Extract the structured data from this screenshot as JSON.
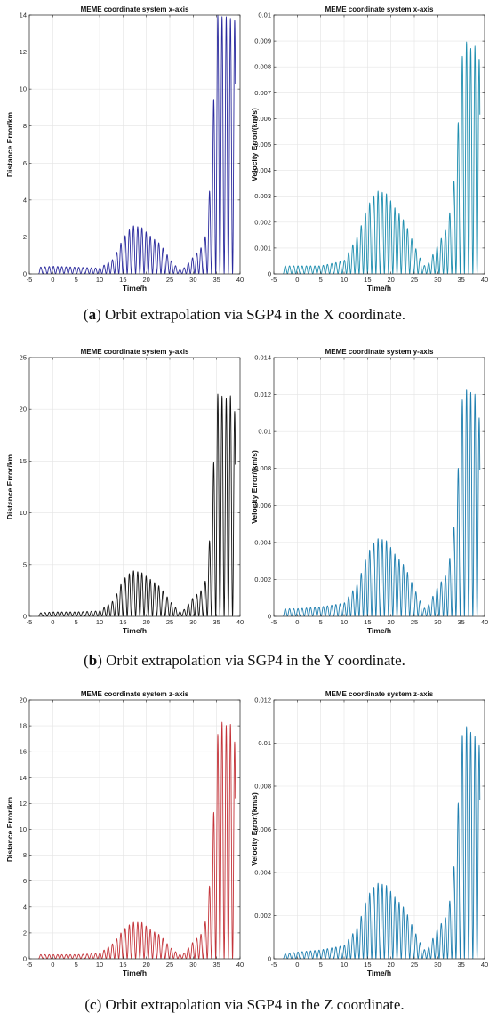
{
  "figure": {
    "captions": [
      {
        "letter": "a",
        "text": "Orbit extrapolation via SGP4 in the X coordinate."
      },
      {
        "letter": "b",
        "text": "Orbit extrapolation via SGP4 in the Y coordinate."
      },
      {
        "letter": "c",
        "text": "Orbit extrapolation via SGP4 in the Z coordinate."
      }
    ]
  },
  "chart_data": [
    {
      "type": "line",
      "title": "MEME coordinate system x-axis",
      "xlabel": "Time/h",
      "ylabel": "Distance Error/km",
      "xlim": [
        -5,
        40
      ],
      "ylim": [
        0,
        14
      ],
      "xticks": [
        "-5",
        "0",
        "5",
        "10",
        "15",
        "20",
        "25",
        "30",
        "35",
        "40"
      ],
      "yticks": [
        "0",
        "2",
        "4",
        "6",
        "8",
        "10",
        "12",
        "14"
      ],
      "grid": true,
      "color": "#2b2b9e",
      "envelope": {
        "x": [
          -3,
          0,
          5,
          10,
          13,
          15,
          17,
          19,
          21,
          23,
          25,
          27,
          28,
          30,
          32,
          33,
          34,
          35,
          36,
          37,
          38,
          39
        ],
        "y": [
          0.35,
          0.4,
          0.35,
          0.3,
          0.8,
          1.9,
          2.6,
          2.5,
          2.0,
          1.6,
          0.8,
          0.2,
          0.3,
          0.9,
          1.5,
          2.4,
          6.8,
          14.0,
          13.9,
          13.9,
          13.8,
          13.7
        ]
      },
      "cycle_h": 0.9
    },
    {
      "type": "line",
      "title": "MEME coordinate system x-axis",
      "xlabel": "Time/h",
      "ylabel": "Velocity Error/(km/s)",
      "xlim": [
        -5,
        40
      ],
      "ylim": [
        0,
        0.01
      ],
      "xticks": [
        "-5",
        "0",
        "5",
        "10",
        "15",
        "20",
        "25",
        "30",
        "35",
        "40"
      ],
      "yticks": [
        "0",
        "0.001",
        "0.002",
        "0.003",
        "0.004",
        "0.005",
        "0.006",
        "0.007",
        "0.008",
        "0.009",
        "0.01"
      ],
      "grid": true,
      "color": "#1f8fb0",
      "envelope": {
        "x": [
          -3,
          0,
          5,
          10,
          13,
          15,
          17,
          19,
          21,
          23,
          25,
          27,
          28,
          30,
          32,
          33,
          34,
          35,
          36,
          37,
          38,
          39
        ],
        "y": [
          0.0003,
          0.0003,
          0.0003,
          0.0005,
          0.0015,
          0.0026,
          0.0032,
          0.0031,
          0.0025,
          0.002,
          0.0011,
          0.0003,
          0.0004,
          0.0011,
          0.0018,
          0.0028,
          0.0045,
          0.0082,
          0.009,
          0.0087,
          0.0088,
          0.0082
        ]
      },
      "cycle_h": 0.9
    },
    {
      "type": "line",
      "title": "MEME coordinate system y-axis",
      "xlabel": "Time/h",
      "ylabel": "Distance Error/km",
      "xlim": [
        -5,
        40
      ],
      "ylim": [
        0,
        25
      ],
      "xticks": [
        "-5",
        "0",
        "5",
        "10",
        "15",
        "20",
        "25",
        "30",
        "35",
        "40"
      ],
      "yticks": [
        "0",
        "5",
        "10",
        "15",
        "20",
        "25"
      ],
      "grid": true,
      "color": "#111111",
      "envelope": {
        "x": [
          -3,
          0,
          5,
          10,
          13,
          15,
          17,
          19,
          21,
          23,
          25,
          27,
          28,
          30,
          32,
          33,
          34,
          35,
          36,
          37,
          38,
          39
        ],
        "y": [
          0.3,
          0.4,
          0.4,
          0.5,
          1.5,
          3.5,
          4.4,
          4.2,
          3.5,
          2.8,
          1.5,
          0.4,
          0.6,
          1.8,
          2.6,
          4.0,
          11.0,
          21.5,
          21.3,
          21.0,
          21.3,
          19.5
        ]
      },
      "cycle_h": 0.9
    },
    {
      "type": "line",
      "title": "MEME coordinate system y-axis",
      "xlabel": "Time/h",
      "ylabel": "Velocity Error/(km/s)",
      "xlim": [
        -5,
        40
      ],
      "ylim": [
        0,
        0.014
      ],
      "xticks": [
        "-5",
        "0",
        "5",
        "10",
        "15",
        "20",
        "25",
        "30",
        "35",
        "40"
      ],
      "yticks": [
        "0",
        "0.002",
        "0.004",
        "0.006",
        "0.008",
        "0.01",
        "0.012",
        "0.014"
      ],
      "grid": true,
      "color": "#1f7fb0",
      "envelope": {
        "x": [
          -3,
          0,
          5,
          10,
          13,
          15,
          17,
          19,
          21,
          23,
          25,
          27,
          28,
          30,
          32,
          33,
          34,
          35,
          36,
          37,
          38,
          39
        ],
        "y": [
          0.0004,
          0.0004,
          0.0005,
          0.0007,
          0.0018,
          0.0034,
          0.0042,
          0.0041,
          0.0033,
          0.0027,
          0.0015,
          0.0004,
          0.0006,
          0.0016,
          0.0023,
          0.0038,
          0.006,
          0.0115,
          0.0123,
          0.0121,
          0.012,
          0.0105
        ]
      },
      "cycle_h": 0.9
    },
    {
      "type": "line",
      "title": "MEME coordinate system z-axis",
      "xlabel": "Time/h",
      "ylabel": "Distance Error/km",
      "xlim": [
        -5,
        40
      ],
      "ylim": [
        0,
        20
      ],
      "xticks": [
        "-5",
        "0",
        "5",
        "10",
        "15",
        "20",
        "25",
        "30",
        "35",
        "40"
      ],
      "yticks": [
        "0",
        "2",
        "4",
        "6",
        "8",
        "10",
        "12",
        "14",
        "16",
        "18",
        "20"
      ],
      "grid": true,
      "color": "#c4343a",
      "envelope": {
        "x": [
          -3,
          0,
          5,
          10,
          13,
          15,
          17,
          19,
          21,
          23,
          25,
          27,
          28,
          30,
          32,
          33,
          34,
          35,
          36,
          37,
          38,
          39
        ],
        "y": [
          0.3,
          0.3,
          0.3,
          0.4,
          1.2,
          2.2,
          2.8,
          2.8,
          2.2,
          1.8,
          0.9,
          0.3,
          0.4,
          1.3,
          2.0,
          3.5,
          8.0,
          17.0,
          18.3,
          18.0,
          18.1,
          16.5
        ]
      },
      "cycle_h": 0.9
    },
    {
      "type": "line",
      "title": "MEME coordinate system z-axis",
      "xlabel": "Time/h",
      "ylabel": "Velocity Error/(km/s)",
      "xlim": [
        -5,
        40
      ],
      "ylim": [
        0,
        0.012
      ],
      "xticks": [
        "-5",
        "0",
        "5",
        "10",
        "15",
        "20",
        "25",
        "30",
        "35",
        "40"
      ],
      "yticks": [
        "0",
        "0.002",
        "0.004",
        "0.006",
        "0.008",
        "0.01",
        "0.012"
      ],
      "grid": true,
      "color": "#1f7fb0",
      "envelope": {
        "x": [
          -3,
          0,
          5,
          10,
          13,
          15,
          17,
          19,
          21,
          23,
          25,
          27,
          28,
          30,
          32,
          33,
          34,
          35,
          36,
          37,
          38,
          39
        ],
        "y": [
          0.0002,
          0.0003,
          0.0004,
          0.0006,
          0.0015,
          0.0029,
          0.0035,
          0.0034,
          0.0028,
          0.0023,
          0.0013,
          0.0004,
          0.0005,
          0.0014,
          0.002,
          0.0032,
          0.0055,
          0.0102,
          0.0108,
          0.0105,
          0.0103,
          0.0098
        ]
      },
      "cycle_h": 0.9
    }
  ]
}
